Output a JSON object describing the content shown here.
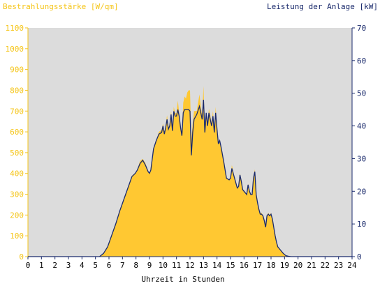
{
  "colors": {
    "plot_background": "#dcdcdc",
    "irradiance_fill": "#ffc832",
    "power_line": "#1a2a6c",
    "left_axis_text": "#f5c518",
    "right_axis_text": "#1a2a6c",
    "grid": "#c8c8c8"
  },
  "chart_data": {
    "type": "area",
    "title_left": "Bestrahlungsstärke [W/qm]",
    "title_right": "Leistung der Anlage [kW]",
    "xlabel": "Uhrzeit in Stunden",
    "xlim": [
      0,
      24
    ],
    "ylim_left": [
      0,
      1100
    ],
    "ylim_right": [
      0,
      70
    ],
    "x_ticks": [
      "0",
      "1",
      "2",
      "3",
      "4",
      "5",
      "6",
      "7",
      "8",
      "9",
      "10",
      "11",
      "12",
      "13",
      "14",
      "15",
      "16",
      "17",
      "18",
      "19",
      "20",
      "21",
      "22",
      "23",
      "24"
    ],
    "y_ticks_left": [
      "0",
      "100",
      "200",
      "300",
      "400",
      "500",
      "600",
      "700",
      "800",
      "900",
      "1000",
      "1100"
    ],
    "y_ticks_right": [
      "0",
      "10",
      "20",
      "30",
      "40",
      "50",
      "60",
      "70"
    ],
    "grid": false,
    "series": [
      {
        "axis": "left",
        "style": "area",
        "x": [
          0,
          5.3,
          5.6,
          5.9,
          6.2,
          6.5,
          6.8,
          7.1,
          7.4,
          7.7,
          7.95,
          8.1,
          8.3,
          8.5,
          8.7,
          8.9,
          9.0,
          9.1,
          9.3,
          9.5,
          9.7,
          9.9,
          10.0,
          10.1,
          10.2,
          10.3,
          10.4,
          10.5,
          10.6,
          10.7,
          10.8,
          10.9,
          11.0,
          11.1,
          11.2,
          11.3,
          11.4,
          11.5,
          11.6,
          11.7,
          11.8,
          11.9,
          12.0,
          12.1,
          12.2,
          12.3,
          12.5,
          12.7,
          12.8,
          12.9,
          13.0,
          13.1,
          13.2,
          13.3,
          13.4,
          13.5,
          13.6,
          13.7,
          13.8,
          13.9,
          14.0,
          14.1,
          14.2,
          14.3,
          14.5,
          14.7,
          14.9,
          15.0,
          15.1,
          15.3,
          15.4,
          15.5,
          15.6,
          15.7,
          15.8,
          15.9,
          16.0,
          16.1,
          16.2,
          16.3,
          16.4,
          16.5,
          16.6,
          16.7,
          16.8,
          16.9,
          17.0,
          17.1,
          17.2,
          17.3,
          17.4,
          17.5,
          17.6,
          17.7,
          17.8,
          17.9,
          18.0,
          18.1,
          18.2,
          18.3,
          18.4,
          18.5,
          18.7,
          18.9,
          19.1,
          19.3,
          19.5,
          19.7,
          19.8,
          20,
          24
        ],
        "values": [
          0,
          0,
          15,
          50,
          100,
          160,
          220,
          270,
          330,
          390,
          400,
          420,
          460,
          470,
          450,
          410,
          400,
          420,
          520,
          560,
          600,
          610,
          640,
          600,
          630,
          680,
          620,
          640,
          700,
          620,
          720,
          690,
          690,
          750,
          690,
          630,
          590,
          740,
          770,
          760,
          790,
          800,
          800,
          560,
          640,
          700,
          700,
          780,
          720,
          680,
          820,
          600,
          690,
          640,
          710,
          680,
          640,
          700,
          600,
          720,
          620,
          540,
          560,
          530,
          450,
          380,
          370,
          380,
          440,
          380,
          350,
          330,
          340,
          400,
          370,
          320,
          320,
          310,
          300,
          350,
          320,
          300,
          300,
          380,
          420,
          300,
          260,
          230,
          210,
          210,
          200,
          180,
          160,
          200,
          210,
          200,
          210,
          180,
          140,
          100,
          70,
          50,
          30,
          15,
          5,
          2,
          0,
          0,
          0,
          0,
          0
        ],
        "name": ""
      },
      {
        "axis": "right",
        "style": "line",
        "x": [
          0,
          5.3,
          5.6,
          5.9,
          6.2,
          6.5,
          6.8,
          7.1,
          7.4,
          7.7,
          7.95,
          8.1,
          8.3,
          8.5,
          8.7,
          8.9,
          9.0,
          9.1,
          9.3,
          9.5,
          9.7,
          9.9,
          10.0,
          10.1,
          10.2,
          10.3,
          10.4,
          10.5,
          10.6,
          10.7,
          10.8,
          10.9,
          11.0,
          11.1,
          11.2,
          11.3,
          11.4,
          11.5,
          11.6,
          11.7,
          11.8,
          11.9,
          12.0,
          12.1,
          12.2,
          12.3,
          12.5,
          12.7,
          12.8,
          12.9,
          13.0,
          13.1,
          13.2,
          13.3,
          13.4,
          13.5,
          13.6,
          13.7,
          13.8,
          13.9,
          14.0,
          14.1,
          14.2,
          14.3,
          14.5,
          14.7,
          14.9,
          15.0,
          15.1,
          15.3,
          15.4,
          15.5,
          15.6,
          15.7,
          15.8,
          15.9,
          16.0,
          16.1,
          16.2,
          16.3,
          16.4,
          16.5,
          16.6,
          16.7,
          16.8,
          16.9,
          17.0,
          17.1,
          17.2,
          17.3,
          17.4,
          17.5,
          17.6,
          17.7,
          17.8,
          17.9,
          18.0,
          18.1,
          18.2,
          18.3,
          18.4,
          18.5,
          18.7,
          18.9,
          19.1,
          19.3,
          19.5,
          19.7,
          19.8,
          20,
          24
        ],
        "values": [
          0,
          0,
          1,
          3,
          6.5,
          10,
          14,
          17.5,
          21,
          24.5,
          25.5,
          26.5,
          28.5,
          29.5,
          28,
          26,
          25.5,
          26.5,
          33,
          35.5,
          37.5,
          38,
          40,
          37.5,
          39.5,
          42,
          39,
          40,
          43.5,
          38.5,
          44.5,
          43,
          43,
          45,
          43,
          39.5,
          37,
          44,
          45,
          45,
          45,
          45,
          44.5,
          31,
          38,
          42,
          43.5,
          46,
          44,
          42,
          48,
          38,
          44,
          40,
          44,
          42,
          40,
          43,
          38,
          44,
          39,
          34.5,
          35.5,
          33.5,
          29,
          24,
          23.5,
          24,
          27,
          24,
          22.5,
          21,
          21.5,
          25,
          23,
          20.5,
          20,
          19.5,
          19,
          22,
          20,
          19,
          19,
          24,
          26,
          19,
          16.5,
          14.5,
          13,
          13,
          12.5,
          11,
          9,
          12.5,
          13,
          12.5,
          13,
          11.5,
          9,
          6.5,
          4.5,
          3,
          2,
          1,
          0.3,
          0.1,
          0,
          0,
          0,
          0,
          0
        ],
        "name": ""
      }
    ]
  }
}
